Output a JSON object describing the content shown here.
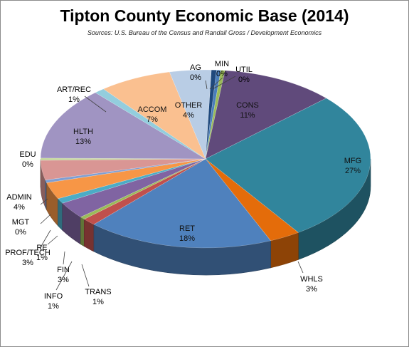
{
  "chart_data": {
    "type": "pie",
    "title": "Tipton County Economic Base (2014)",
    "subtitle": "Sources: U.S. Bureau of the Census and Randall Gross / Development Economics",
    "slices": [
      {
        "category": "AG",
        "percent_label": "0%",
        "value": 0.5,
        "color": "#1f497d"
      },
      {
        "category": "MIN",
        "percent_label": "0%",
        "value": 0.4,
        "color": "#4a7ebb"
      },
      {
        "category": "UTIL",
        "percent_label": "0%",
        "value": 0.4,
        "color": "#9bbb59"
      },
      {
        "category": "CONS",
        "percent_label": "11%",
        "value": 11,
        "color": "#604a7b"
      },
      {
        "category": "MFG",
        "percent_label": "27%",
        "value": 27,
        "color": "#31859c"
      },
      {
        "category": "WHLS",
        "percent_label": "3%",
        "value": 3,
        "color": "#e46c0a"
      },
      {
        "category": "RET",
        "percent_label": "18%",
        "value": 18,
        "color": "#4f81bd"
      },
      {
        "category": "TRANS",
        "percent_label": "1%",
        "value": 1.3,
        "color": "#c0504d"
      },
      {
        "category": "INFO",
        "percent_label": "1%",
        "value": 0.5,
        "color": "#9bbb59"
      },
      {
        "category": "FIN",
        "percent_label": "3%",
        "value": 3,
        "color": "#8064a2"
      },
      {
        "category": "RE",
        "percent_label": "1%",
        "value": 0.9,
        "color": "#4bacc6"
      },
      {
        "category": "PROF/TECH",
        "percent_label": "3%",
        "value": 3,
        "color": "#f79646"
      },
      {
        "category": "MGT",
        "percent_label": "0%",
        "value": 0.5,
        "color": "#7f9fd3"
      },
      {
        "category": "ADMIN",
        "percent_label": "4%",
        "value": 3.5,
        "color": "#d99694"
      },
      {
        "category": "EDU",
        "percent_label": "0%",
        "value": 0.4,
        "color": "#c3d69b"
      },
      {
        "category": "HLTH",
        "percent_label": "13%",
        "value": 13,
        "color": "#a094c2"
      },
      {
        "category": "ART/REC",
        "percent_label": "1%",
        "value": 1,
        "color": "#93cddd"
      },
      {
        "category": "ACCOM",
        "percent_label": "7%",
        "value": 7,
        "color": "#fac090"
      },
      {
        "category": "OTHER",
        "percent_label": "4%",
        "value": 4,
        "color": "#b9cde5"
      }
    ]
  }
}
